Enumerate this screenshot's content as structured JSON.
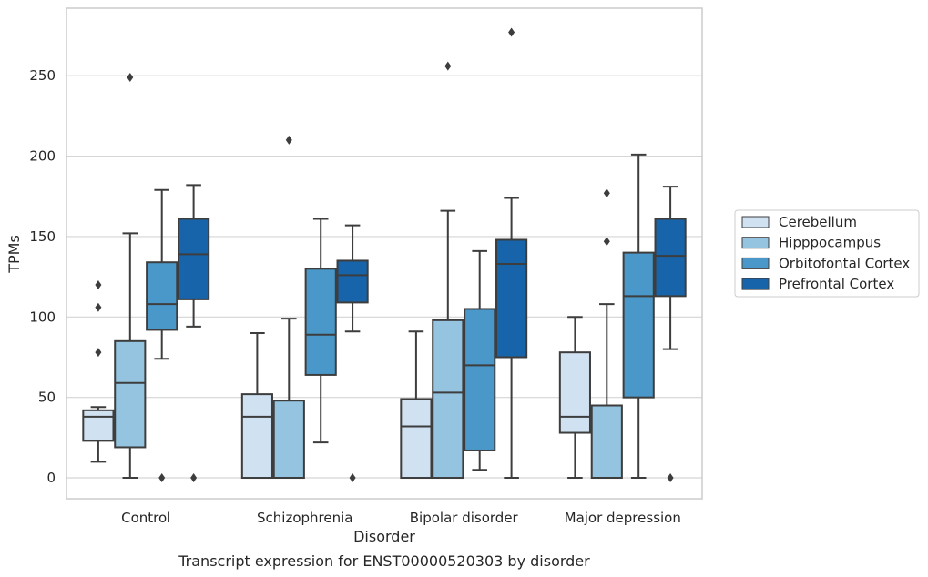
{
  "chart_data": {
    "type": "box",
    "caption": "Transcript expression for ENST00000520303 by disorder",
    "xlabel": "Disorder",
    "ylabel": "TPMs",
    "ylim": [
      -13,
      292
    ],
    "yticks": [
      0,
      50,
      100,
      150,
      200,
      250
    ],
    "grid": "horizontal",
    "legend_position": "right",
    "categories": [
      "Control",
      "Schizophrenia",
      "Bipolar disorder",
      "Major depression"
    ],
    "series": [
      {
        "name": "Cerebellum",
        "color": "#d0e1f2",
        "boxes": [
          {
            "whislo": 10,
            "q1": 23,
            "med": 38,
            "q3": 42,
            "whishi": 44,
            "fliers": [
              78,
              106,
              120
            ]
          },
          {
            "whislo": 0,
            "q1": 0,
            "med": 38,
            "q3": 52,
            "whishi": 90,
            "fliers": []
          },
          {
            "whislo": 0,
            "q1": 0,
            "med": 32,
            "q3": 49,
            "whishi": 91,
            "fliers": []
          },
          {
            "whislo": 0,
            "q1": 28,
            "med": 38,
            "q3": 78,
            "whishi": 100,
            "fliers": []
          }
        ]
      },
      {
        "name": "Hipppocampus",
        "color": "#94c4df",
        "boxes": [
          {
            "whislo": 0,
            "q1": 19,
            "med": 59,
            "q3": 85,
            "whishi": 152,
            "fliers": [
              249
            ]
          },
          {
            "whislo": 0,
            "q1": 0,
            "med": 0,
            "q3": 48,
            "whishi": 99,
            "fliers": [
              210
            ]
          },
          {
            "whislo": 0,
            "q1": 0,
            "med": 53,
            "q3": 98,
            "whishi": 166,
            "fliers": [
              256
            ]
          },
          {
            "whislo": 0,
            "q1": 0,
            "med": 0,
            "q3": 45,
            "whishi": 108,
            "fliers": [
              147,
              177
            ]
          }
        ]
      },
      {
        "name": "Orbitofontal Cortex",
        "color": "#4a98c9",
        "boxes": [
          {
            "whislo": 74,
            "q1": 92,
            "med": 108,
            "q3": 134,
            "whishi": 179,
            "fliers": [
              0
            ]
          },
          {
            "whislo": 22,
            "q1": 64,
            "med": 89,
            "q3": 130,
            "whishi": 161,
            "fliers": []
          },
          {
            "whislo": 5,
            "q1": 17,
            "med": 70,
            "q3": 105,
            "whishi": 141,
            "fliers": []
          },
          {
            "whislo": 0,
            "q1": 50,
            "med": 113,
            "q3": 140,
            "whishi": 201,
            "fliers": []
          }
        ]
      },
      {
        "name": "Prefrontal Cortex",
        "color": "#1764ab",
        "boxes": [
          {
            "whislo": 94,
            "q1": 111,
            "med": 139,
            "q3": 161,
            "whishi": 182,
            "fliers": [
              0
            ]
          },
          {
            "whislo": 91,
            "q1": 109,
            "med": 126,
            "q3": 135,
            "whishi": 157,
            "fliers": [
              0
            ]
          },
          {
            "whislo": 0,
            "q1": 75,
            "med": 133,
            "q3": 148,
            "whishi": 174,
            "fliers": [
              277
            ]
          },
          {
            "whislo": 80,
            "q1": 113,
            "med": 138,
            "q3": 161,
            "whishi": 181,
            "fliers": [
              0
            ]
          }
        ]
      }
    ]
  }
}
